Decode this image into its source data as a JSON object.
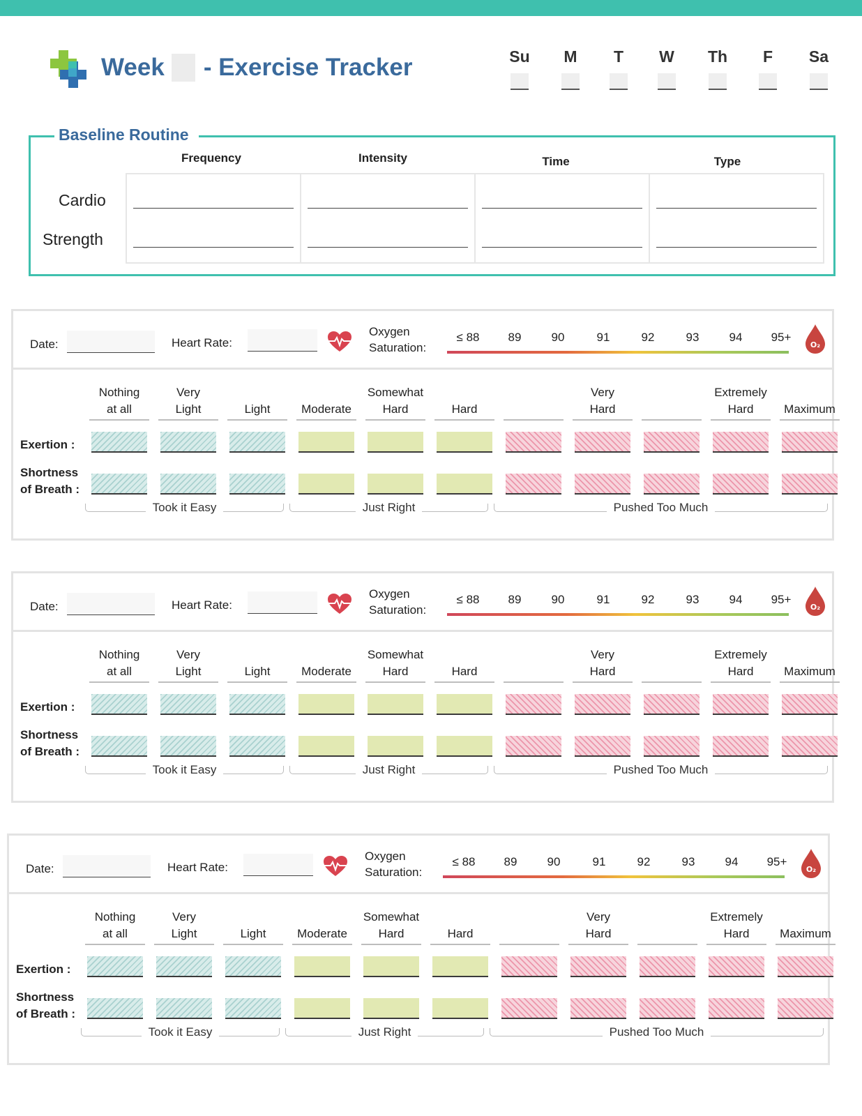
{
  "header": {
    "title_pre": "Week",
    "title_post": "- Exercise Tracker",
    "days": [
      "Su",
      "M",
      "T",
      "W",
      "Th",
      "F",
      "Sa"
    ]
  },
  "baseline": {
    "title": "Baseline Routine",
    "columns": [
      "Frequency",
      "Intensity",
      "Time",
      "Type"
    ],
    "rows": [
      "Cardio",
      "Strength"
    ]
  },
  "log": {
    "date_label": "Date:",
    "heart_rate_label": "Heart Rate:",
    "oxygen_label_1": "Oxygen",
    "oxygen_label_2": "Saturation:",
    "oxygen_values": [
      "≤ 88",
      "89",
      "90",
      "91",
      "92",
      "93",
      "94",
      "95+"
    ],
    "o2_symbol": "O₂",
    "scale": [
      [
        "Nothing",
        "at all"
      ],
      [
        "Very",
        "Light"
      ],
      [
        "",
        "Light"
      ],
      [
        "",
        "Moderate"
      ],
      [
        "Somewhat",
        "Hard"
      ],
      [
        "",
        "Hard"
      ],
      [
        "",
        ""
      ],
      [
        "Very",
        "Hard"
      ],
      [
        "",
        ""
      ],
      [
        "Extremely",
        "Hard"
      ],
      [
        "",
        "Maximum"
      ]
    ],
    "zones": [
      "easy",
      "easy",
      "easy",
      "right",
      "right",
      "right",
      "much",
      "much",
      "much",
      "much",
      "much"
    ],
    "row_exertion": "Exertion :",
    "row_breath_1": "Shortness",
    "row_breath_2": "of Breath :",
    "groups": [
      "Took it Easy",
      "Just Right",
      "Pushed Too Much"
    ]
  },
  "colors": {
    "accent_teal": "#3fc0ae",
    "title_blue": "#3a6a9c",
    "easy_zone": "#d8ecea",
    "right_zone": "#e2e9b3",
    "much_zone": "#f7d4dc",
    "heart_red": "#d9434f",
    "drop_red": "#c8453f"
  }
}
